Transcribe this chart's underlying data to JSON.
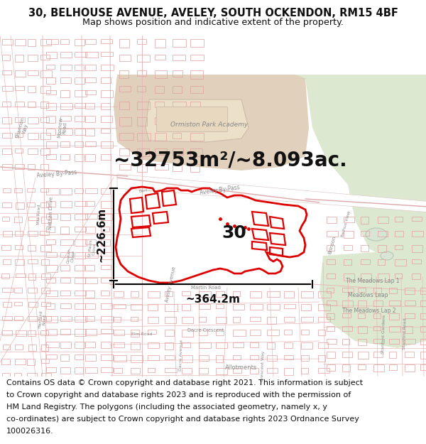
{
  "title_line1": "30, BELHOUSE AVENUE, AVELEY, SOUTH OCKENDON, RM15 4BF",
  "title_line2": "Map shows position and indicative extent of the property.",
  "area_text": "~32753m²/~8.093ac.",
  "width_text": "~364.2m",
  "height_text": "~226.6m",
  "property_number": "30",
  "footer_lines": [
    "Contains OS data © Crown copyright and database right 2021. This information is subject",
    "to Crown copyright and database rights 2023 and is reproduced with the permission of",
    "HM Land Registry. The polygons (including the associated geometry, namely x, y",
    "co-ordinates) are subject to Crown copyright and database rights 2023 Ordnance Survey",
    "100026316."
  ],
  "title_fontsize": 10.5,
  "subtitle_fontsize": 9.5,
  "area_fontsize": 22,
  "dim_fontsize": 11,
  "number_fontsize": 20,
  "footer_fontsize": 8,
  "map_bg_color": "#f5f0eb",
  "fig_bg_color": "#ffffff",
  "road_outline_color": "#e8d0c8",
  "building_color": "#e8b8b8",
  "green_color": "#dce8d0",
  "tan_color": "#e0d0bc",
  "property_color": "#dd0000",
  "dim_color": "#000000",
  "label_color": "#888888",
  "road_label_color": "#777777"
}
